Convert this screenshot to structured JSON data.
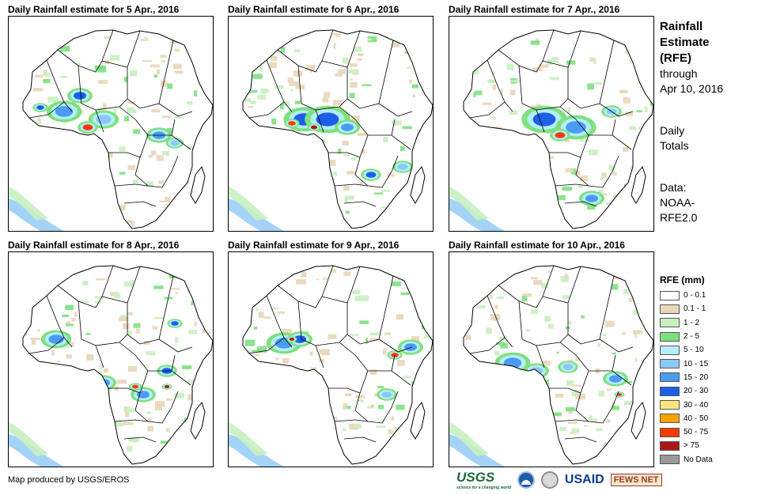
{
  "panels": [
    {
      "title": "Daily Rainfall estimate for 5 Apr., 2016",
      "day": 5
    },
    {
      "title": "Daily Rainfall estimate for 6 Apr., 2016",
      "day": 6
    },
    {
      "title": "Daily Rainfall estimate for 7 Apr., 2016",
      "day": 7
    },
    {
      "title": "Daily Rainfall estimate for 8 Apr., 2016",
      "day": 8
    },
    {
      "title": "Daily Rainfall estimate for 9 Apr., 2016",
      "day": 9
    },
    {
      "title": "Daily Rainfall estimate for 10 Apr., 2016",
      "day": 10
    }
  ],
  "info": {
    "title_line1": "Rainfall",
    "title_line2": "Estimate",
    "title_line3": "(RFE)",
    "through_label": "through",
    "through_date": "Apr 10, 2016",
    "totals_line1": "Daily",
    "totals_line2": "Totals",
    "data_label": "Data:",
    "data_line1": "NOAA-",
    "data_line2": "RFE2.0"
  },
  "legend": {
    "title": "RFE (mm)",
    "items": [
      {
        "label": "0 - 0.1",
        "color": "#ffffff"
      },
      {
        "label": "0.1 - 1",
        "color": "#e8d6b8"
      },
      {
        "label": "1 - 2",
        "color": "#c8f0c0"
      },
      {
        "label": "2 - 5",
        "color": "#7ee07e"
      },
      {
        "label": "5 - 10",
        "color": "#b4eefa"
      },
      {
        "label": "10 - 15",
        "color": "#8cc8f5"
      },
      {
        "label": "15 - 20",
        "color": "#4a9cf0"
      },
      {
        "label": "20 - 30",
        "color": "#1c5fe6"
      },
      {
        "label": "30 - 40",
        "color": "#ffe680"
      },
      {
        "label": "40 - 50",
        "color": "#f7a400"
      },
      {
        "label": "50 - 75",
        "color": "#f53c00"
      },
      {
        "label": "> 75",
        "color": "#a81a1a"
      },
      {
        "label": "No Data",
        "color": "#999999"
      }
    ]
  },
  "credit": "Map produced by USGS/EROS",
  "logos": {
    "usgs": "USGS",
    "usgs_tagline": "science for a changing world",
    "usaid": "USAID",
    "fews": "FEWS NET"
  }
}
